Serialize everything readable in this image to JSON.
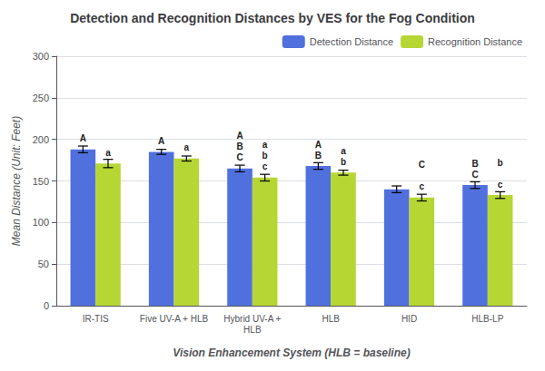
{
  "chart_data": {
    "type": "bar",
    "title": "Detection and Recognition Distances by VES for the Fog Condition",
    "xlabel": "Vision Enhancement System (HLB = baseline)",
    "ylabel": "Mean Distance (Unit: Feet)",
    "categories": [
      "IR-TIS",
      "Five UV-A + HLB",
      "Hybrid UV-A +\nHLB",
      "HLB",
      "HID",
      "HLB-LP"
    ],
    "series": [
      {
        "name": "Detection Distance",
        "values": [
          188,
          185,
          165,
          168,
          140,
          145
        ],
        "errors": [
          4,
          3,
          4,
          4,
          4,
          4
        ],
        "annotations": [
          "A",
          "A",
          "A\nB\nC",
          "A\nB",
          null,
          "B\nC"
        ]
      },
      {
        "name": "Recognition Distance",
        "values": [
          171,
          177,
          154,
          160,
          130,
          133
        ],
        "errors": [
          5,
          3,
          4,
          3,
          4,
          4
        ],
        "annotations": [
          "a",
          "a",
          "a\nb\nc",
          "a\nb",
          "C\n \nc",
          "b\n \nc"
        ]
      }
    ],
    "ylim": [
      0,
      300
    ],
    "yticks": [
      0,
      50,
      100,
      150,
      200,
      250,
      300
    ],
    "grid": true,
    "legend": "upper right"
  }
}
